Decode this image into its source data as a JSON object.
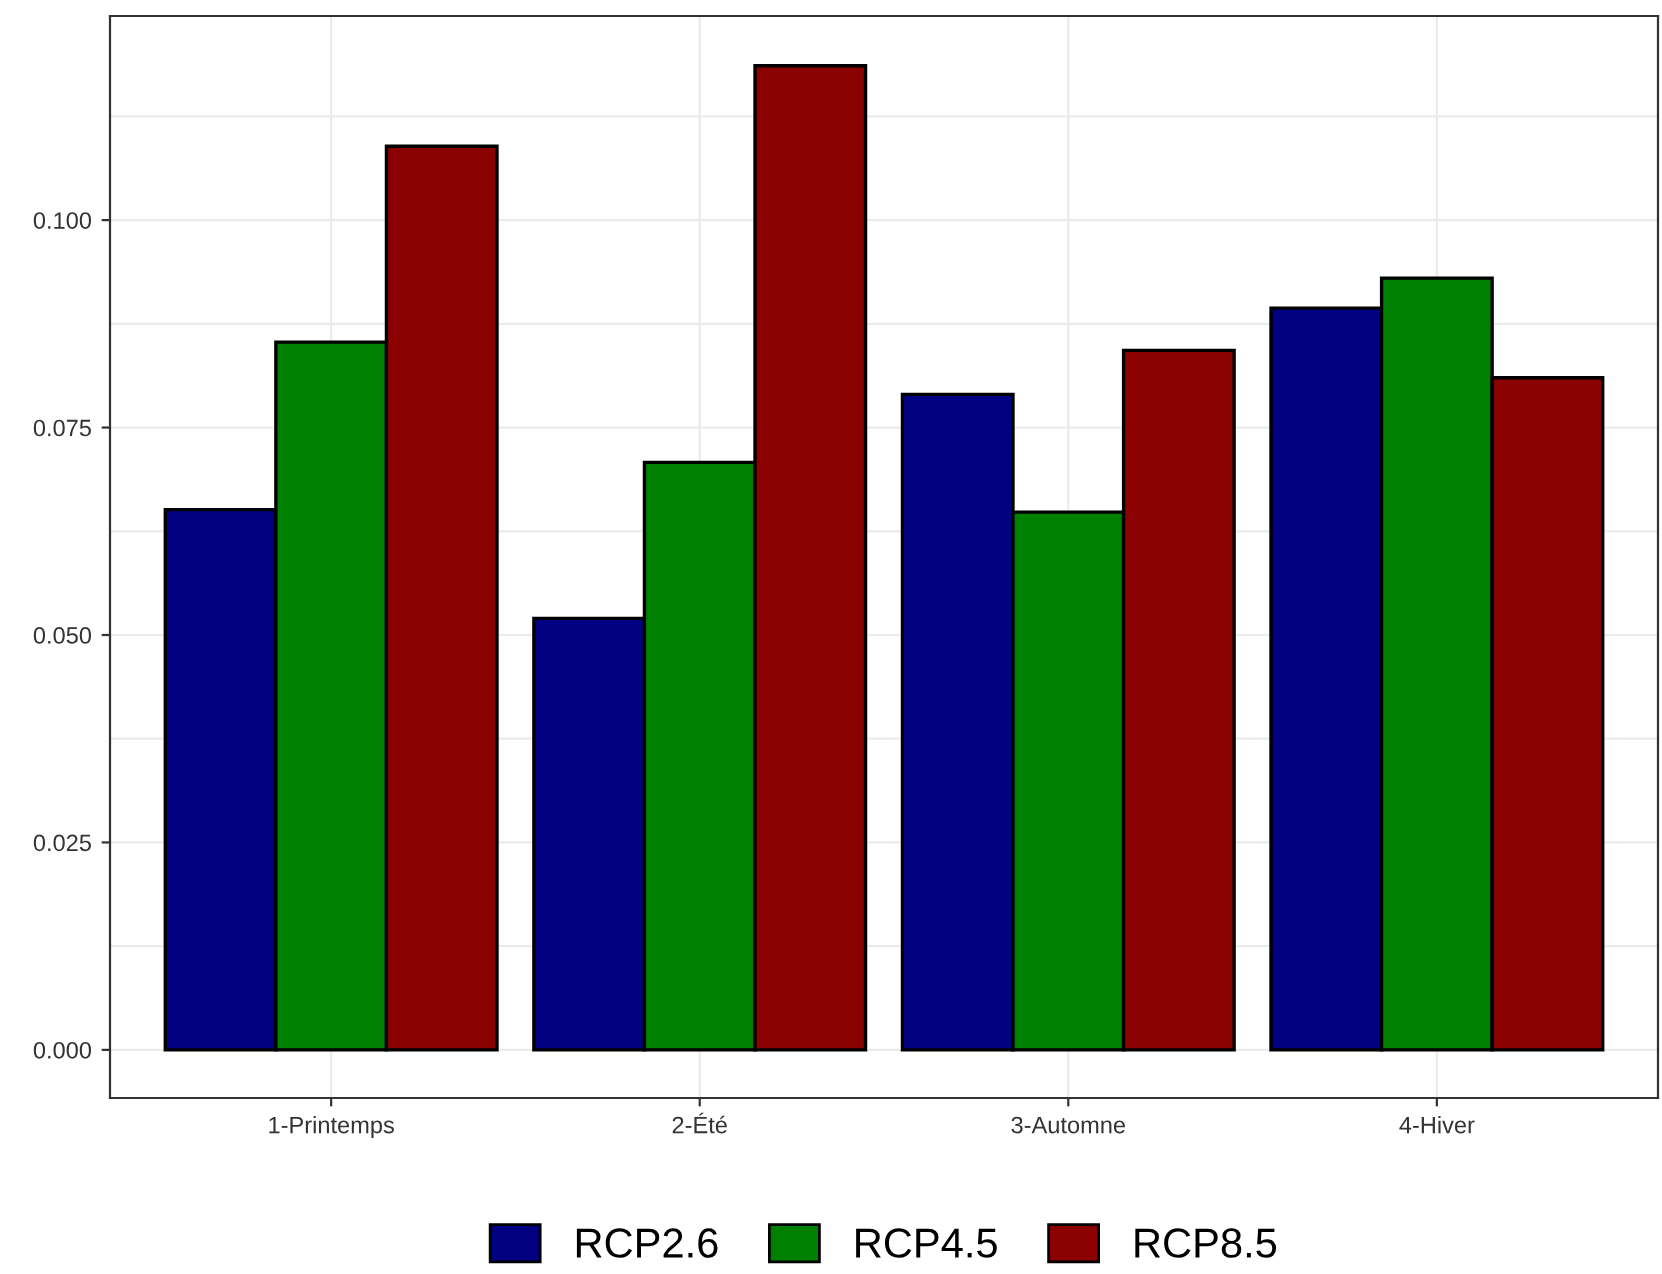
{
  "chart_data": {
    "type": "bar",
    "categories": [
      "1-Printemps",
      "2-Été",
      "3-Automne",
      "4-Hiver"
    ],
    "series": [
      {
        "name": "RCP2.6",
        "color": "#000080",
        "values": [
          0.0651,
          0.052,
          0.079,
          0.0894
        ]
      },
      {
        "name": "RCP4.5",
        "color": "#008000",
        "values": [
          0.0853,
          0.0708,
          0.0648,
          0.093
        ]
      },
      {
        "name": "RCP8.5",
        "color": "#8b0000",
        "values": [
          0.1089,
          0.1186,
          0.0843,
          0.081
        ]
      }
    ],
    "ylim": [
      -0.0058,
      0.1246
    ],
    "yticks": [
      {
        "value": 0,
        "label": "0.000"
      },
      {
        "value": 0.025,
        "label": "0.025"
      },
      {
        "value": 0.05,
        "label": "0.050"
      },
      {
        "value": 0.075,
        "label": "0.075"
      },
      {
        "value": 0.1,
        "label": "0.100"
      }
    ],
    "grid": true,
    "legend": "bottom"
  }
}
